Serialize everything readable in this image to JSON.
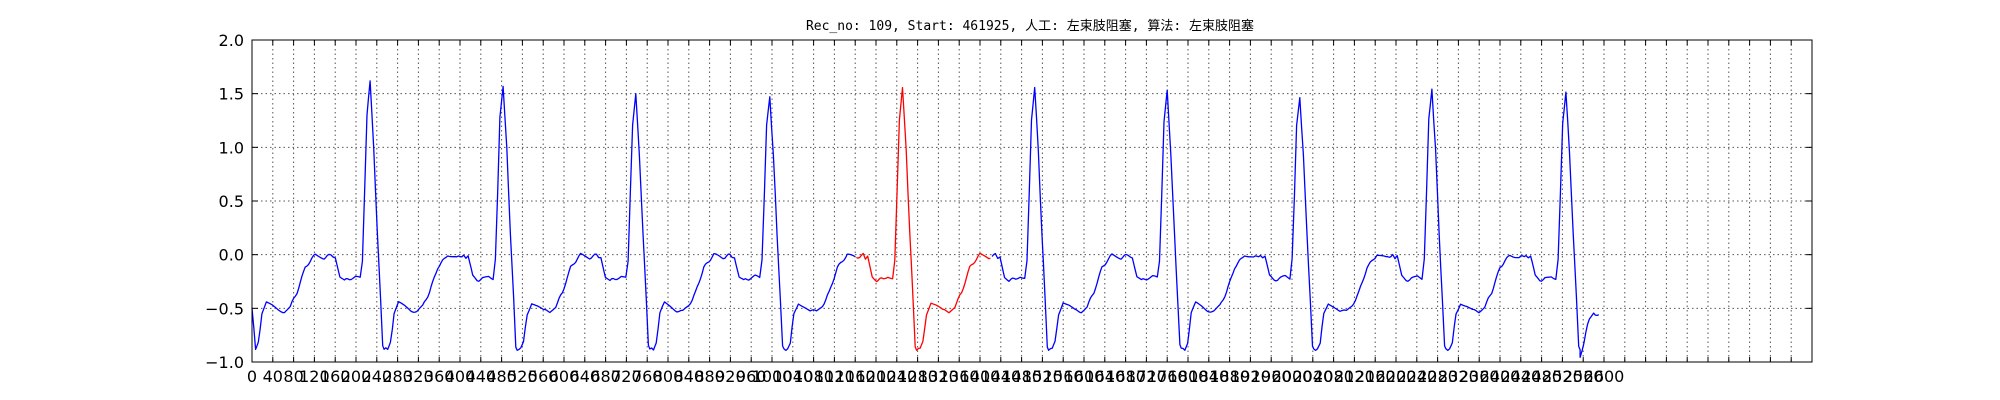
{
  "chart_data": {
    "type": "line",
    "title": "Rec_no: 109, Start: 461925, 人工: 左束肢阻塞, 算法: 左束肢阻塞",
    "xlabel": "",
    "ylabel": "",
    "xlim": [
      0,
      3000
    ],
    "ylim": [
      -1.0,
      2.0
    ],
    "x_tick_step": 40,
    "x_label_until": 2600,
    "yticks": [
      -1.0,
      -0.5,
      0.0,
      0.5,
      1.0,
      1.5,
      2.0
    ],
    "ytick_labels": [
      "−1.0",
      "−0.5",
      "0.0",
      "0.5",
      "1.0",
      "1.5",
      "2.0"
    ],
    "grid": true,
    "grid_style": "dotted",
    "legend": "none",
    "colors": {
      "signal": "#0000ff",
      "highlight": "#ff0000",
      "grid": "#555555",
      "frame": "#000000"
    },
    "beat": {
      "x": [
        0,
        8,
        14,
        22,
        32,
        45,
        58,
        72,
        85,
        100,
        118,
        140,
        160,
        175,
        180,
        185,
        195,
        205,
        220,
        230,
        240,
        245,
        250,
        255,
        262,
        270,
        278,
        285,
        290,
        293
      ],
      "y": [
        -0.5,
        -0.88,
        -0.82,
        -0.55,
        -0.45,
        -0.48,
        -0.52,
        -0.53,
        -0.48,
        -0.35,
        -0.12,
        0.0,
        -0.03,
        0.0,
        -0.03,
        -0.02,
        -0.2,
        -0.24,
        -0.22,
        -0.2,
        -0.22,
        -0.05,
        0.6,
        1.3,
        1.6,
        1.0,
        0.2,
        -0.4,
        -0.85,
        -0.88
      ]
    },
    "beats": [
      {
        "start": 0,
        "period": 254,
        "peak": 1.61,
        "highlight": false
      },
      {
        "start": 254,
        "period": 256,
        "peak": 1.58,
        "highlight": false
      },
      {
        "start": 510,
        "period": 255,
        "peak": 1.49,
        "highlight": false
      },
      {
        "start": 765,
        "period": 258,
        "peak": 1.47,
        "highlight": false
      },
      {
        "start": 1023,
        "period": 255,
        "peak": 1.56,
        "highlight": false
      },
      {
        "start": 1278,
        "period": 254,
        "peak": 1.56,
        "highlight": false
      },
      {
        "start": 1532,
        "period": 255,
        "peak": 1.52,
        "highlight": false
      },
      {
        "start": 1787,
        "period": 255,
        "peak": 1.47,
        "highlight": false
      },
      {
        "start": 2042,
        "period": 254,
        "peak": 1.55,
        "highlight": false
      },
      {
        "start": 2296,
        "period": 258,
        "peak": 1.52,
        "highlight": false
      }
    ],
    "tail": {
      "x": [
        2554,
        2558,
        2565,
        2572,
        2580,
        2590
      ],
      "y": [
        -0.95,
        -0.9,
        -0.72,
        -0.6,
        -0.55,
        -0.56
      ]
    },
    "highlight_range": [
      1160,
      1420
    ]
  }
}
